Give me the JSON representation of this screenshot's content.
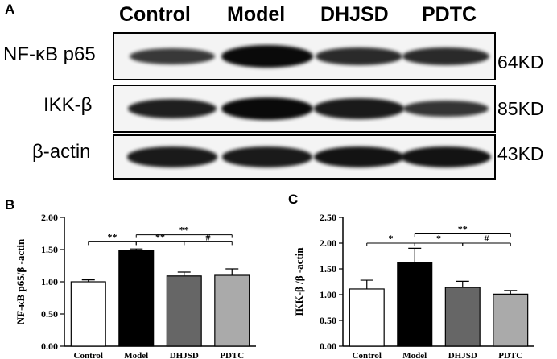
{
  "panel_a": {
    "letter": "A",
    "lanes": [
      "Control",
      "Model",
      "DHJSD",
      "PDTC"
    ],
    "blots": [
      {
        "protein": "NF-κB p65",
        "size": "64KD",
        "band_intensity": [
          0.55,
          1.0,
          0.7,
          0.7
        ]
      },
      {
        "protein": "IKK-β",
        "size": "85KD",
        "band_intensity": [
          0.8,
          1.0,
          0.85,
          0.6
        ]
      },
      {
        "protein": "β-actin",
        "size": "43KD",
        "band_intensity": [
          0.85,
          0.85,
          0.9,
          0.9
        ]
      }
    ]
  },
  "chart_data": [
    {
      "panel": "B",
      "type": "bar",
      "categories": [
        "Control",
        "Model",
        "DHJSD",
        "PDTC"
      ],
      "values": [
        1.0,
        1.48,
        1.09,
        1.1
      ],
      "errors": [
        0.03,
        0.03,
        0.06,
        0.1
      ],
      "colors": [
        "#ffffff",
        "#000000",
        "#666666",
        "#aaaaaa"
      ],
      "title": "",
      "xlabel": "",
      "ylabel": "NF-κB p65/β -actin",
      "ylim": [
        0,
        2.0
      ],
      "yticks": [
        "0.00",
        "0.50",
        "1.00",
        "1.50",
        "2.00"
      ],
      "ytick_values": [
        0,
        0.5,
        1.0,
        1.5,
        2.0
      ],
      "grid": false,
      "significance": [
        {
          "from": 0,
          "to": 1,
          "label": "**",
          "level": 1.62
        },
        {
          "from": 1,
          "to": 2,
          "label": "**",
          "level": 1.62
        },
        {
          "from": 2,
          "to": 3,
          "label": "#",
          "level": 1.62
        },
        {
          "from": 1,
          "to": 3,
          "label": "**",
          "level": 1.73
        }
      ]
    },
    {
      "panel": "C",
      "type": "bar",
      "categories": [
        "Control",
        "Model",
        "DHJSD",
        "PDTC"
      ],
      "values": [
        1.11,
        1.62,
        1.14,
        1.01
      ],
      "errors": [
        0.17,
        0.28,
        0.12,
        0.07
      ],
      "colors": [
        "#ffffff",
        "#000000",
        "#666666",
        "#aaaaaa"
      ],
      "title": "",
      "xlabel": "",
      "ylabel": "IKK-β /β -actin",
      "ylim": [
        0,
        2.5
      ],
      "yticks": [
        "0.00",
        "0.50",
        "1.00",
        "1.50",
        "2.00",
        "2.50"
      ],
      "ytick_values": [
        0,
        0.5,
        1.0,
        1.5,
        2.0,
        2.5
      ],
      "grid": false,
      "significance": [
        {
          "from": 0,
          "to": 1,
          "label": "*",
          "level": 2.0
        },
        {
          "from": 1,
          "to": 2,
          "label": "*",
          "level": 2.0
        },
        {
          "from": 2,
          "to": 3,
          "label": "#",
          "level": 2.0
        },
        {
          "from": 1,
          "to": 3,
          "label": "**",
          "level": 2.18
        }
      ]
    }
  ]
}
